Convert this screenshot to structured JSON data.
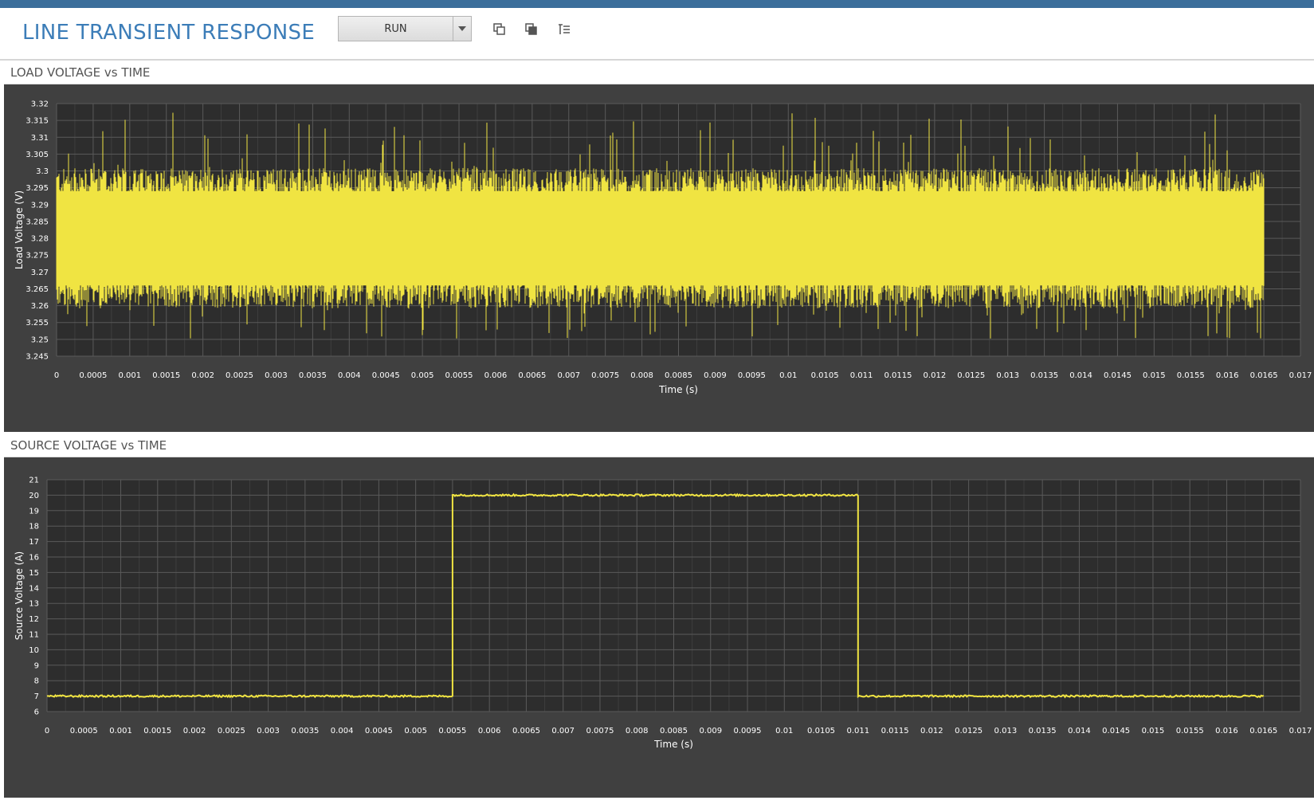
{
  "header": {
    "title": "LINE TRANSIENT RESPONSE",
    "run_label": "RUN",
    "icons": [
      "copy-icon",
      "copy-to-clipboard-icon",
      "list-settings-icon"
    ],
    "accent_color": "#3b6e9b",
    "title_color": "#3c7db8"
  },
  "load_panel": {
    "title": "LOAD VOLTAGE vs TIME"
  },
  "source_panel": {
    "title": "SOURCE VOLTAGE vs TIME"
  },
  "chart_data": [
    {
      "type": "line",
      "xlabel": "Time (s)",
      "ylabel": "Load Voltage (V)",
      "xlim": [
        0,
        0.017
      ],
      "ylim": [
        3.245,
        3.32
      ],
      "x_ticks": [
        "0",
        "0.0005",
        "0.001",
        "0.0015",
        "0.002",
        "0.0025",
        "0.003",
        "0.0035",
        "0.004",
        "0.0045",
        "0.005",
        "0.0055",
        "0.006",
        "0.0065",
        "0.007",
        "0.0075",
        "0.008",
        "0.0085",
        "0.009",
        "0.0095",
        "0.01",
        "0.0105",
        "0.011",
        "0.0115",
        "0.012",
        "0.0125",
        "0.013",
        "0.0135",
        "0.014",
        "0.0145",
        "0.015",
        "0.0155",
        "0.016",
        "0.0165",
        "0.017"
      ],
      "y_ticks": [
        "3.32",
        "3.315",
        "3.31",
        "3.305",
        "3.3",
        "3.295",
        "3.29",
        "3.285",
        "3.28",
        "3.275",
        "3.27",
        "3.265",
        "3.26",
        "3.255",
        "3.25",
        "3.245"
      ],
      "grid": true,
      "series_color": "#f0e442",
      "background": "#2d2d2d",
      "series": [
        {
          "x_range": [
            0,
            0.0165
          ],
          "center": 3.2805,
          "band_top": 3.3,
          "band_bottom": 3.26,
          "peak_max": 3.318,
          "peak_min": 3.25
        }
      ]
    },
    {
      "type": "line",
      "xlabel": "Time (s)",
      "ylabel": "Source Voltage (A)",
      "xlim": [
        0,
        0.017
      ],
      "ylim": [
        6,
        21
      ],
      "x_ticks": [
        "0",
        "0.0005",
        "0.001",
        "0.0015",
        "0.002",
        "0.0025",
        "0.003",
        "0.0035",
        "0.004",
        "0.0045",
        "0.005",
        "0.0055",
        "0.006",
        "0.0065",
        "0.007",
        "0.0075",
        "0.008",
        "0.0085",
        "0.009",
        "0.0095",
        "0.01",
        "0.0105",
        "0.011",
        "0.0115",
        "0.012",
        "0.0125",
        "0.013",
        "0.0135",
        "0.014",
        "0.0145",
        "0.015",
        "0.0155",
        "0.016",
        "0.0165",
        "0.017"
      ],
      "y_ticks": [
        "21",
        "20",
        "19",
        "18",
        "17",
        "16",
        "15",
        "14",
        "13",
        "12",
        "11",
        "10",
        "9",
        "8",
        "7",
        "6"
      ],
      "grid": true,
      "series_color": "#f0e442",
      "background": "#2d2d2d",
      "series": [
        {
          "x": [
            0,
            0.0055,
            0.0055,
            0.011,
            0.011,
            0.0165
          ],
          "y": [
            7,
            7,
            20,
            20,
            7,
            7
          ]
        }
      ]
    }
  ]
}
